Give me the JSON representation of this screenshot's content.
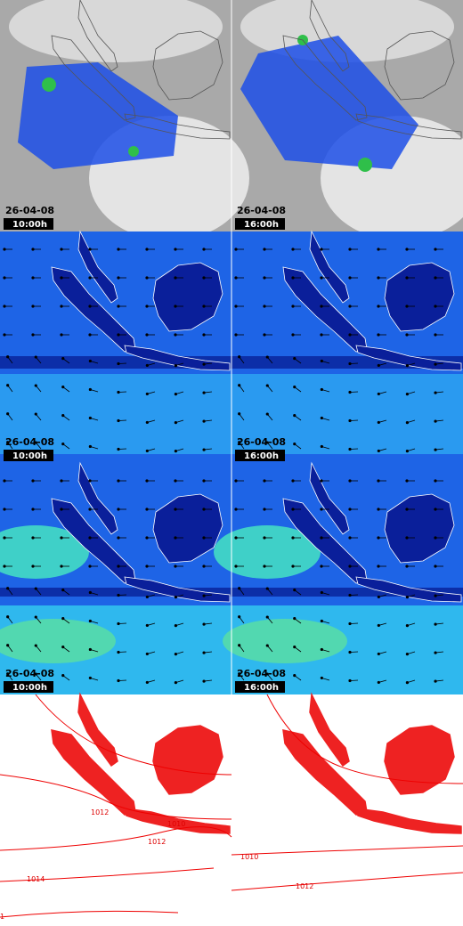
{
  "panels": [
    {
      "date": "26-04-08",
      "time": "10:00h"
    },
    {
      "date": "26-04-08",
      "time": "16:00h"
    },
    {
      "date": "26-04-08",
      "time": "10:00h"
    },
    {
      "date": "26-04-08",
      "time": "16:00h"
    },
    {
      "date": "26-04-08",
      "time": "10:00h"
    },
    {
      "date": "26-04-08",
      "time": "16:00h"
    },
    {
      "contour_labels": [
        "1012",
        "1010",
        "1012",
        "1014",
        "1"
      ]
    },
    {
      "contour_labels": [
        "1010",
        "1012"
      ]
    }
  ]
}
